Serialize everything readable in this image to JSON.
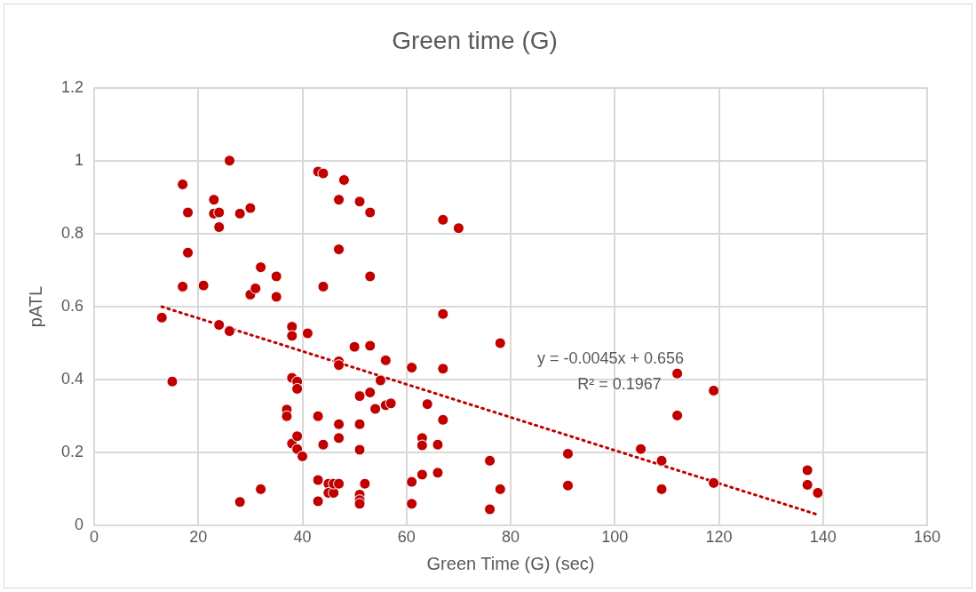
{
  "chart_data": {
    "type": "scatter",
    "title": "Green time (G)",
    "xlabel": "Green Time (G) (sec)",
    "ylabel": "pATL",
    "xlim": [
      0,
      160
    ],
    "xticks": [
      0,
      20,
      40,
      60,
      80,
      100,
      120,
      140,
      160
    ],
    "ylim": [
      0,
      1.2
    ],
    "yticks": [
      0,
      0.2,
      0.4,
      0.6,
      0.8,
      1,
      1.2
    ],
    "grid": true,
    "legend": false,
    "annotations": [
      "y = -0.0045x + 0.656",
      "R² = 0.1967"
    ],
    "series": [
      {
        "type": "scatter",
        "color": "#c00000",
        "marker": "circle",
        "x": [
          13,
          15,
          17,
          17,
          18,
          18,
          21,
          23,
          23,
          24,
          24,
          24,
          26,
          26,
          28,
          28,
          30,
          30,
          31,
          32,
          32,
          35,
          35,
          37,
          37,
          38,
          38,
          38,
          38,
          39,
          39,
          39,
          39,
          40,
          41,
          43,
          43,
          43,
          43,
          44,
          44,
          44,
          45,
          45,
          46,
          46,
          47,
          47,
          47,
          47,
          47,
          47,
          47,
          48,
          50,
          51,
          51,
          51,
          51,
          51,
          51,
          51,
          52,
          53,
          53,
          53,
          53,
          54,
          55,
          56,
          56,
          57,
          61,
          61,
          61,
          63,
          63,
          63,
          64,
          66,
          66,
          67,
          67,
          67,
          67,
          70,
          76,
          76,
          78,
          78,
          91,
          91,
          105,
          109,
          109,
          112,
          112,
          119,
          119,
          137,
          137,
          139
        ],
        "values": [
          0.57,
          0.395,
          0.935,
          0.655,
          0.858,
          0.748,
          0.658,
          0.893,
          0.855,
          0.858,
          0.818,
          0.55,
          1.0,
          0.533,
          0.855,
          0.065,
          0.87,
          0.633,
          0.65,
          0.708,
          0.1,
          0.683,
          0.627,
          0.318,
          0.3,
          0.545,
          0.52,
          0.405,
          0.225,
          0.395,
          0.375,
          0.245,
          0.21,
          0.19,
          0.527,
          0.97,
          0.3,
          0.125,
          0.067,
          0.965,
          0.655,
          0.222,
          0.115,
          0.09,
          0.09,
          0.115,
          0.893,
          0.757,
          0.45,
          0.44,
          0.278,
          0.24,
          0.115,
          0.947,
          0.49,
          0.888,
          0.355,
          0.278,
          0.208,
          0.085,
          0.07,
          0.06,
          0.115,
          0.858,
          0.683,
          0.493,
          0.365,
          0.32,
          0.398,
          0.453,
          0.33,
          0.335,
          0.433,
          0.12,
          0.06,
          0.24,
          0.22,
          0.14,
          0.333,
          0.222,
          0.145,
          0.838,
          0.58,
          0.43,
          0.29,
          0.815,
          0.178,
          0.045,
          0.5,
          0.1,
          0.197,
          0.11,
          0.21,
          0.178,
          0.1,
          0.417,
          0.302,
          0.37,
          0.117,
          0.152,
          0.112,
          0.09
        ]
      },
      {
        "type": "line",
        "color": "#c00000",
        "marker": "none",
        "line_style": "dotted",
        "x": [
          13,
          139
        ],
        "values": [
          0.6,
          0.03
        ]
      }
    ]
  }
}
